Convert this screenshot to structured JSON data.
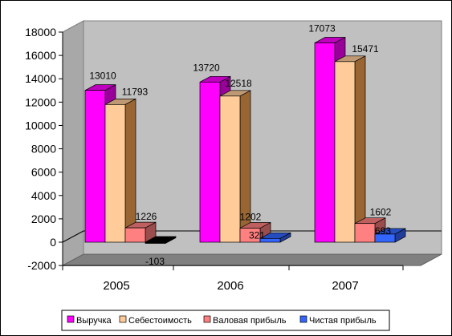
{
  "chart_data": {
    "type": "bar",
    "categories": [
      "2005",
      "2006",
      "2007"
    ],
    "series": [
      {
        "name": "Выручка",
        "values": [
          13010,
          13720,
          17073
        ],
        "color": "#FF00FF"
      },
      {
        "name": "Себестоимость",
        "values": [
          11793,
          12518,
          15471
        ],
        "color": "#FFCC99"
      },
      {
        "name": "Валовая прибыль",
        "values": [
          1226,
          1202,
          1602
        ],
        "color": "#FF8080"
      },
      {
        "name": "Чистая прибыль",
        "values": [
          -103,
          321,
          693
        ],
        "color": "#3366FF"
      }
    ],
    "y_ticks": [
      "-2000",
      "0",
      "2000",
      "4000",
      "6000",
      "8000",
      "10000",
      "12000",
      "14000",
      "16000",
      "18000"
    ],
    "ylim": [
      -2000,
      18000
    ],
    "grid": false,
    "legend_position": "bottom",
    "title": "",
    "xlabel": "",
    "ylabel": ""
  }
}
